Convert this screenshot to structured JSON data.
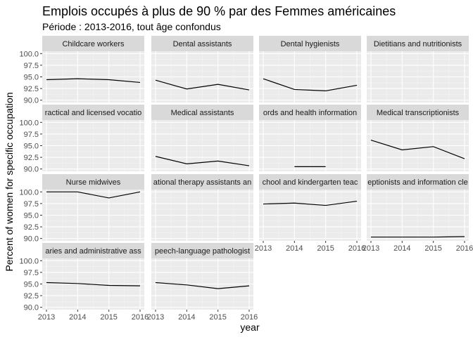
{
  "chart_data": {
    "type": "line",
    "title": "Emplois occupés à plus de 90 % par des Femmes américaines",
    "subtitle": "Période : 2013-2016, tout âge confondus",
    "xlabel": "year",
    "ylabel": "Percent of women for specific occupation",
    "x": [
      2013,
      2014,
      2015,
      2016
    ],
    "x_ticks": [
      "2013",
      "2014",
      "2015",
      "2016"
    ],
    "row_ylims": [
      [
        90.0,
        100.0
      ],
      [
        90.0,
        100.0
      ],
      [
        90.0,
        100.0
      ],
      [
        90.0,
        100.0
      ]
    ],
    "row_yticks": [
      [
        "90.0",
        "92.5",
        "95.0",
        "97.5",
        "100.0"
      ],
      [
        "90.0",
        "92.5",
        "95.0",
        "97.5",
        "100.0"
      ],
      [
        "90.0",
        "92.5",
        "95.0",
        "97.5",
        "100.0"
      ],
      [
        "90.0",
        "92.5",
        "95.0",
        "97.5",
        "100.0"
      ]
    ],
    "grid": true,
    "series": [
      {
        "name": "Childcare workers",
        "values": [
          94.4,
          94.6,
          94.4,
          93.8
        ]
      },
      {
        "name": "Dental assistants",
        "values": [
          94.3,
          92.4,
          93.4,
          92.2
        ]
      },
      {
        "name": "Dental hygienists",
        "values": [
          94.6,
          92.3,
          92.0,
          93.2
        ]
      },
      {
        "name": "Dietitians and nutritionists",
        "values": [
          null,
          null,
          null,
          null
        ]
      },
      {
        "name": "ractical and licensed vocatio",
        "values": [
          null,
          null,
          null,
          null
        ]
      },
      {
        "name": "Medical assistants",
        "values": [
          92.7,
          91.1,
          91.7,
          90.7
        ]
      },
      {
        "name": "ords and health information",
        "values": [
          null,
          90.5,
          90.5,
          null
        ]
      },
      {
        "name": "Medical transcriptionists",
        "values": [
          96.2,
          94.1,
          94.8,
          92.2
        ]
      },
      {
        "name": "Nurse midwives",
        "values": [
          100.0,
          100.0,
          98.7,
          100.0
        ]
      },
      {
        "name": "ational therapy assistants an",
        "values": [
          null,
          null,
          null,
          null
        ]
      },
      {
        "name": "chool and kindergarten teac",
        "values": [
          97.4,
          97.6,
          97.1,
          98.0
        ]
      },
      {
        "name": "eptionists and information cle",
        "values": [
          90.3,
          90.3,
          90.3,
          90.4
        ]
      },
      {
        "name": "aries and administrative ass",
        "values": [
          95.3,
          95.1,
          94.7,
          94.6
        ]
      },
      {
        "name": "peech-language pathologist",
        "values": [
          95.3,
          94.8,
          94.0,
          94.6
        ]
      }
    ]
  }
}
